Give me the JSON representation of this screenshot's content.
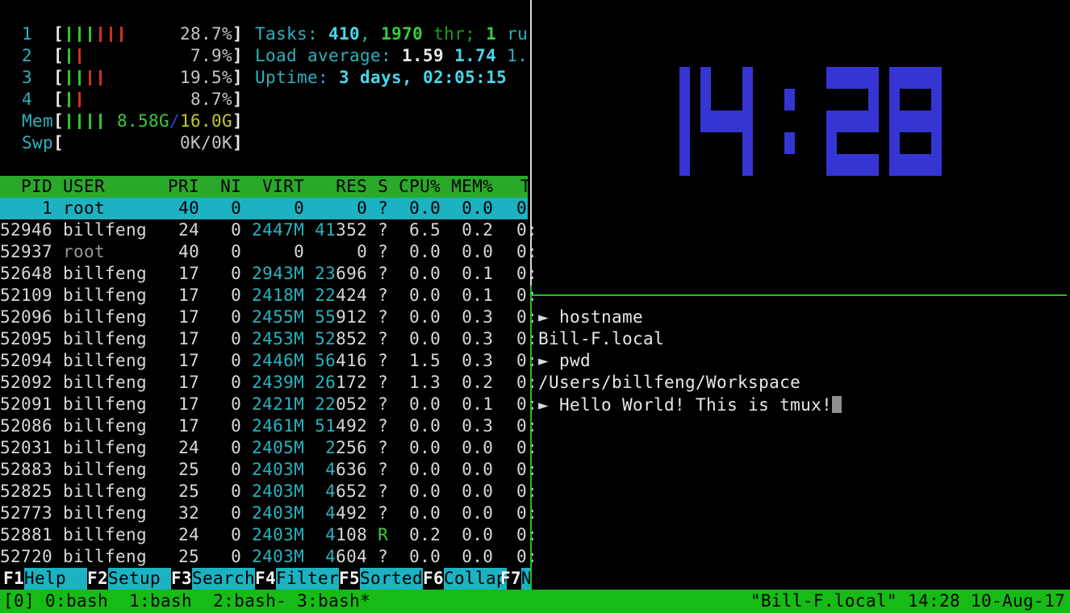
{
  "htop": {
    "meters": [
      {
        "name": "cpu1",
        "label": "1",
        "bars": [
          "green",
          "green",
          "green",
          "red",
          "red",
          "red"
        ],
        "text": [
          {
            "t": "28.7%",
            "c": "pct"
          }
        ]
      },
      {
        "name": "cpu2",
        "label": "2",
        "bars": [
          "green",
          "red"
        ],
        "text": [
          {
            "t": "7.9%",
            "c": "pct"
          }
        ]
      },
      {
        "name": "cpu3",
        "label": "3",
        "bars": [
          "green",
          "green",
          "red",
          "red"
        ],
        "text": [
          {
            "t": "19.5%",
            "c": "pct"
          }
        ]
      },
      {
        "name": "cpu4",
        "label": "4",
        "bars": [
          "green",
          "red"
        ],
        "text": [
          {
            "t": "8.7%",
            "c": "pct"
          }
        ]
      },
      {
        "name": "mem",
        "label": "Mem",
        "bars": [
          "green",
          "green",
          "green",
          "green"
        ],
        "text": [
          {
            "t": "8.58G",
            "c": "bgreen"
          },
          {
            "t": "/",
            "c": "blue"
          },
          {
            "t": "16.0G",
            "c": "yellow"
          }
        ]
      },
      {
        "name": "swp",
        "label": "Swp",
        "bars": [],
        "text": [
          {
            "t": "0K/0K",
            "c": "pct"
          }
        ]
      }
    ],
    "info_lines": [
      {
        "name": "tasks-line",
        "segs": [
          {
            "t": "Tasks: ",
            "c": "cyan"
          },
          {
            "t": "410",
            "c": "bcyan b"
          },
          {
            "t": ", ",
            "c": "cyan"
          },
          {
            "t": "1970",
            "c": "bgreen b"
          },
          {
            "t": " thr; ",
            "c": "dgreen"
          },
          {
            "t": "1",
            "c": "bgreen b"
          },
          {
            "t": " ru",
            "c": "cyan"
          }
        ]
      },
      {
        "name": "load-line",
        "segs": [
          {
            "t": "Load average: ",
            "c": "cyan"
          },
          {
            "t": "1.59 ",
            "c": "white b"
          },
          {
            "t": "1.74 ",
            "c": "bcyan b"
          },
          {
            "t": "1.",
            "c": "cyan"
          }
        ]
      },
      {
        "name": "uptime-line",
        "segs": [
          {
            "t": "Uptime: ",
            "c": "cyan"
          },
          {
            "t": "3 days, 02:05:15",
            "c": "bcyan b"
          }
        ]
      }
    ],
    "table": {
      "header_cols": "  PID USER      PRI  NI  VIRT   RES S CPU% MEM%",
      "header_time": "T",
      "rows": [
        {
          "pid": "1",
          "user": "root",
          "pri": "40",
          "ni": "0",
          "virt": "0",
          "virt_cyan": false,
          "res_hi": "",
          "res_lo": "0",
          "s": "?",
          "cpu": "0.0",
          "mem": "0.0",
          "time": "0:",
          "selected": true,
          "user_gray": false
        },
        {
          "pid": "52946",
          "user": "billfeng",
          "pri": "24",
          "ni": "0",
          "virt": "2447M",
          "virt_cyan": true,
          "res_hi": "41",
          "res_lo": "352",
          "s": "?",
          "cpu": "6.5",
          "mem": "0.2",
          "time": "0:",
          "selected": false,
          "user_gray": false
        },
        {
          "pid": "52937",
          "user": "root",
          "pri": "40",
          "ni": "0",
          "virt": "0",
          "virt_cyan": false,
          "res_hi": "",
          "res_lo": "0",
          "s": "?",
          "cpu": "0.0",
          "mem": "0.0",
          "time": "0:",
          "selected": false,
          "user_gray": true
        },
        {
          "pid": "52648",
          "user": "billfeng",
          "pri": "17",
          "ni": "0",
          "virt": "2943M",
          "virt_cyan": true,
          "res_hi": "23",
          "res_lo": "696",
          "s": "?",
          "cpu": "0.0",
          "mem": "0.1",
          "time": "0:",
          "selected": false,
          "user_gray": false
        },
        {
          "pid": "52109",
          "user": "billfeng",
          "pri": "17",
          "ni": "0",
          "virt": "2418M",
          "virt_cyan": true,
          "res_hi": "22",
          "res_lo": "424",
          "s": "?",
          "cpu": "0.0",
          "mem": "0.1",
          "time": "0:",
          "selected": false,
          "user_gray": false
        },
        {
          "pid": "52096",
          "user": "billfeng",
          "pri": "17",
          "ni": "0",
          "virt": "2455M",
          "virt_cyan": true,
          "res_hi": "55",
          "res_lo": "912",
          "s": "?",
          "cpu": "0.0",
          "mem": "0.3",
          "time": "0:",
          "selected": false,
          "user_gray": false
        },
        {
          "pid": "52095",
          "user": "billfeng",
          "pri": "17",
          "ni": "0",
          "virt": "2453M",
          "virt_cyan": true,
          "res_hi": "52",
          "res_lo": "852",
          "s": "?",
          "cpu": "0.0",
          "mem": "0.3",
          "time": "0:",
          "selected": false,
          "user_gray": false
        },
        {
          "pid": "52094",
          "user": "billfeng",
          "pri": "17",
          "ni": "0",
          "virt": "2446M",
          "virt_cyan": true,
          "res_hi": "56",
          "res_lo": "416",
          "s": "?",
          "cpu": "1.5",
          "mem": "0.3",
          "time": "0:",
          "selected": false,
          "user_gray": false
        },
        {
          "pid": "52092",
          "user": "billfeng",
          "pri": "17",
          "ni": "0",
          "virt": "2439M",
          "virt_cyan": true,
          "res_hi": "26",
          "res_lo": "172",
          "s": "?",
          "cpu": "1.3",
          "mem": "0.2",
          "time": "0:",
          "selected": false,
          "user_gray": false
        },
        {
          "pid": "52091",
          "user": "billfeng",
          "pri": "17",
          "ni": "0",
          "virt": "2421M",
          "virt_cyan": true,
          "res_hi": "22",
          "res_lo": "052",
          "s": "?",
          "cpu": "0.0",
          "mem": "0.1",
          "time": "0:",
          "selected": false,
          "user_gray": false
        },
        {
          "pid": "52086",
          "user": "billfeng",
          "pri": "17",
          "ni": "0",
          "virt": "2461M",
          "virt_cyan": true,
          "res_hi": "51",
          "res_lo": "492",
          "s": "?",
          "cpu": "0.0",
          "mem": "0.3",
          "time": "0:",
          "selected": false,
          "user_gray": false
        },
        {
          "pid": "52031",
          "user": "billfeng",
          "pri": "24",
          "ni": "0",
          "virt": "2405M",
          "virt_cyan": true,
          "res_hi": "2",
          "res_lo": "256",
          "s": "?",
          "cpu": "0.0",
          "mem": "0.0",
          "time": "0:",
          "selected": false,
          "user_gray": false
        },
        {
          "pid": "52883",
          "user": "billfeng",
          "pri": "25",
          "ni": "0",
          "virt": "2403M",
          "virt_cyan": true,
          "res_hi": "4",
          "res_lo": "636",
          "s": "?",
          "cpu": "0.0",
          "mem": "0.0",
          "time": "0:",
          "selected": false,
          "user_gray": false
        },
        {
          "pid": "52825",
          "user": "billfeng",
          "pri": "25",
          "ni": "0",
          "virt": "2403M",
          "virt_cyan": true,
          "res_hi": "4",
          "res_lo": "652",
          "s": "?",
          "cpu": "0.0",
          "mem": "0.0",
          "time": "0:",
          "selected": false,
          "user_gray": false
        },
        {
          "pid": "52773",
          "user": "billfeng",
          "pri": "32",
          "ni": "0",
          "virt": "2403M",
          "virt_cyan": true,
          "res_hi": "4",
          "res_lo": "492",
          "s": "?",
          "cpu": "0.0",
          "mem": "0.0",
          "time": "0:",
          "selected": false,
          "user_gray": false
        },
        {
          "pid": "52881",
          "user": "billfeng",
          "pri": "24",
          "ni": "0",
          "virt": "2403M",
          "virt_cyan": true,
          "res_hi": "4",
          "res_lo": "108",
          "s": "R",
          "cpu": "0.2",
          "mem": "0.0",
          "time": "0:",
          "selected": false,
          "user_gray": false
        },
        {
          "pid": "52720",
          "user": "billfeng",
          "pri": "25",
          "ni": "0",
          "virt": "2403M",
          "virt_cyan": true,
          "res_hi": "4",
          "res_lo": "604",
          "s": "?",
          "cpu": "0.0",
          "mem": "0.0",
          "time": "0:",
          "selected": false,
          "user_gray": false
        }
      ]
    },
    "fnbar": [
      {
        "key": "F1",
        "label": "Help  "
      },
      {
        "key": "F2",
        "label": "Setup "
      },
      {
        "key": "F3",
        "label": "Search"
      },
      {
        "key": "F4",
        "label": "Filter"
      },
      {
        "key": "F5",
        "label": "Sorted"
      },
      {
        "key": "F6",
        "label": "Collap"
      },
      {
        "key": "F7",
        "label": "N"
      }
    ]
  },
  "clock": {
    "time": "14:28"
  },
  "terminal": {
    "lines": [
      {
        "prompt": true,
        "text": "hostname",
        "cursor": false
      },
      {
        "prompt": false,
        "text": "Bill-F.local",
        "cursor": false
      },
      {
        "prompt": true,
        "text": "pwd",
        "cursor": false
      },
      {
        "prompt": false,
        "text": "/Users/billfeng/Workspace",
        "cursor": false
      },
      {
        "prompt": true,
        "text": "Hello World! This is tmux!",
        "cursor": true
      }
    ],
    "prompt_char": "►"
  },
  "status": {
    "session": "[0] ",
    "windows": [
      "0:bash",
      "1:bash",
      "2:bash-",
      "3:bash*"
    ],
    "right": "\"Bill-F.local\" 14:28 10-Aug-17"
  },
  "colors": {
    "cyan": "#29b3bf",
    "bcyan": "#49d6e6",
    "bgreen": "#39cc39",
    "dgreen": "#1f9e1f",
    "yellow": "#c6c62a",
    "blue": "#3c3cd9",
    "gray": "#9a9a9a",
    "pct": "#c5c5c5",
    "bar_green": "#2dc62d",
    "bar_red": "#cc3222",
    "header_bg": "#2aa82a",
    "status_bg": "#16bb16",
    "selection_bg": "#1cb2c2",
    "clock_blue": "#3535d3",
    "border_white": "#d8d8d8",
    "border_green": "#22c022"
  }
}
